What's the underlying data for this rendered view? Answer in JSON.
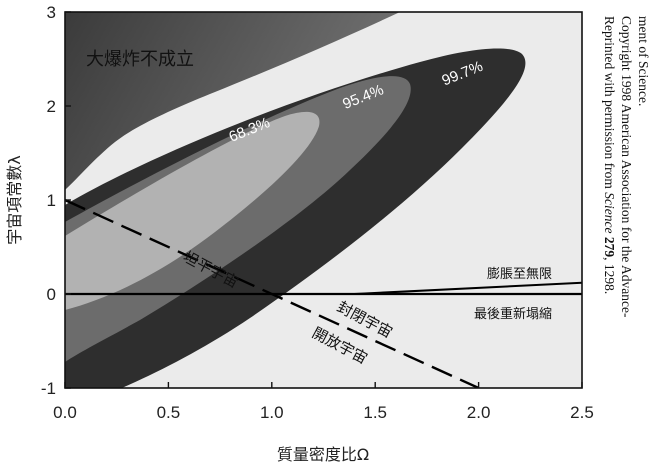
{
  "chart_data": {
    "type": "contour",
    "xlabel": "質量密度比Ω",
    "ylabel": "宇宙項常數λ",
    "xlim": [
      0,
      2.5
    ],
    "ylim": [
      -1,
      3
    ],
    "xticks": [
      "0.0",
      "0.5",
      "1.0",
      "1.5",
      "2.0",
      "2.5"
    ],
    "yticks": [
      "-1",
      "0",
      "1",
      "2",
      "3"
    ],
    "confidence_levels": [
      {
        "label": "68.3%",
        "x": 0.9,
        "y": 1.7,
        "color": "#b2b2b2"
      },
      {
        "label": "95.4%",
        "x": 1.45,
        "y": 2.05,
        "color": "#6c6c6c"
      },
      {
        "label": "99.7%",
        "x": 1.93,
        "y": 2.3,
        "color": "#2e2e2e"
      }
    ],
    "region_labels": [
      {
        "id": "no-big-bang",
        "text": "大爆炸不成立",
        "x": 0.38,
        "y": 2.6
      },
      {
        "id": "flat",
        "text": "坦平宇宙",
        "x": 0.95,
        "y": 0.25
      },
      {
        "id": "closed",
        "text": "封閉宇宙",
        "x": 1.6,
        "y": -0.3
      },
      {
        "id": "open",
        "text": "開放宇宙",
        "x": 1.5,
        "y": -0.55
      },
      {
        "id": "expand-forever",
        "text": "膨脹至無限",
        "x": 2.2,
        "y": 0.15
      },
      {
        "id": "recollapse",
        "text": "最後重新塌縮",
        "x": 2.2,
        "y": -0.1
      }
    ],
    "lines": [
      {
        "id": "flat-universe-line",
        "style": "dashed",
        "points": [
          [
            0,
            1
          ],
          [
            2,
            -1
          ]
        ]
      },
      {
        "id": "lambda-zero-line",
        "style": "solid",
        "points": [
          [
            0,
            0
          ],
          [
            2.5,
            0
          ]
        ]
      },
      {
        "id": "expansion-boundary-line",
        "style": "solid",
        "points": [
          [
            1.4,
            0
          ],
          [
            2.5,
            0.12
          ]
        ]
      }
    ],
    "grid": false
  },
  "credit": {
    "line1_prefix": "Reprinted with permission from ",
    "line1_journal": "Science",
    "line1_volume": "279",
    "line1_suffix": ", 1298.",
    "line2": "Copyright 1998 American Association for the Advance-",
    "line3": "ment of Science."
  },
  "colors": {
    "background": "#ffffff",
    "plot_fill": "#ebebeb",
    "no_big_bang": "#4f4f4f",
    "contour_outer": "#2e2e2e",
    "contour_middle": "#6c6c6c",
    "contour_inner": "#b2b2b2",
    "lines": "#000000"
  }
}
